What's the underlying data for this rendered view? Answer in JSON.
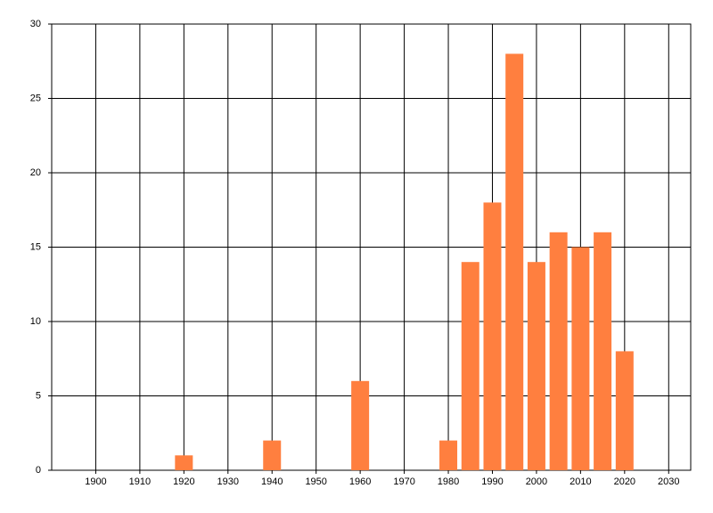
{
  "chart_data": {
    "type": "bar",
    "x": [
      1920,
      1940,
      1960,
      1980,
      1985,
      1990,
      1995,
      2000,
      2005,
      2010,
      2015,
      2020
    ],
    "values": [
      1,
      2,
      6,
      2,
      14,
      18,
      28,
      14,
      16,
      15,
      16,
      8
    ],
    "color": "#ff7f3f",
    "xlim": [
      1890,
      2035
    ],
    "xticks": [
      1900,
      1910,
      1920,
      1930,
      1940,
      1950,
      1960,
      1970,
      1980,
      1990,
      2000,
      2010,
      2020,
      2030
    ],
    "ylim": [
      0,
      30
    ],
    "yticks": [
      0,
      5,
      10,
      15,
      20,
      25,
      30
    ],
    "grid": true
  }
}
